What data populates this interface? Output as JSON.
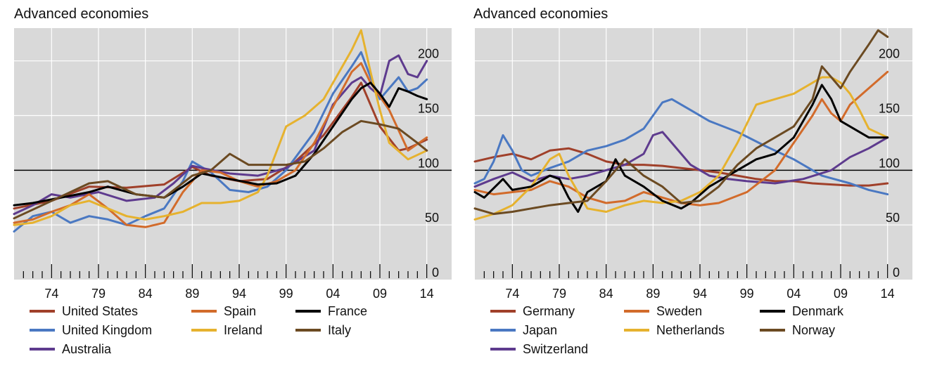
{
  "chart_data": [
    {
      "type": "line",
      "title": "Advanced economies",
      "xlabel": "",
      "ylabel": "",
      "x_ticks": [
        "74",
        "79",
        "84",
        "89",
        "94",
        "99",
        "04",
        "09",
        "14"
      ],
      "y_ticks": [
        "0",
        "50",
        "100",
        "150",
        "200"
      ],
      "xlim": [
        1970,
        2015
      ],
      "ylim": [
        0,
        230
      ],
      "reference_line": 100,
      "grid": true,
      "legend_position": "bottom",
      "series": [
        {
          "name": "United States",
          "color": "#a0402a",
          "x": [
            1970,
            1974,
            1978,
            1982,
            1986,
            1989,
            1991,
            1994,
            1997,
            2000,
            2003,
            2006,
            2007,
            2009,
            2011,
            2012,
            2014
          ],
          "y": [
            65,
            72,
            85,
            84,
            87,
            103,
            95,
            90,
            92,
            108,
            132,
            167,
            180,
            140,
            118,
            120,
            128
          ]
        },
        {
          "name": "United Kingdom",
          "color": "#4a78c2",
          "x": [
            1970,
            1972,
            1974,
            1976,
            1978,
            1980,
            1982,
            1984,
            1986,
            1988,
            1989,
            1991,
            1993,
            1995,
            1997,
            1999,
            2002,
            2004,
            2006,
            2007,
            2008,
            2009,
            2011,
            2012,
            2013,
            2014
          ],
          "y": [
            44,
            58,
            62,
            52,
            58,
            55,
            50,
            58,
            65,
            90,
            108,
            98,
            82,
            80,
            85,
            100,
            135,
            170,
            195,
            208,
            185,
            165,
            185,
            172,
            175,
            183
          ]
        },
        {
          "name": "Australia",
          "color": "#5e3b8e",
          "x": [
            1970,
            1972,
            1974,
            1976,
            1979,
            1982,
            1985,
            1987,
            1989,
            1990,
            1993,
            1996,
            1999,
            2002,
            2004,
            2006,
            2007,
            2008,
            2009,
            2010,
            2011,
            2012,
            2013,
            2014
          ],
          "y": [
            60,
            68,
            78,
            75,
            80,
            72,
            75,
            88,
            104,
            102,
            97,
            95,
            102,
            118,
            160,
            180,
            185,
            175,
            168,
            200,
            205,
            188,
            185,
            200
          ]
        },
        {
          "name": "Spain",
          "color": "#d26b2b",
          "x": [
            1970,
            1972,
            1974,
            1976,
            1978,
            1980,
            1982,
            1984,
            1986,
            1988,
            1990,
            1992,
            1994,
            1996,
            1998,
            2000,
            2002,
            2004,
            2006,
            2007,
            2008,
            2010,
            2012,
            2014
          ],
          "y": [
            52,
            55,
            62,
            68,
            78,
            65,
            50,
            48,
            52,
            80,
            100,
            98,
            90,
            85,
            90,
            100,
            125,
            158,
            190,
            198,
            180,
            155,
            118,
            130
          ]
        },
        {
          "name": "Ireland",
          "color": "#e6b22e",
          "x": [
            1970,
            1972,
            1974,
            1976,
            1978,
            1980,
            1982,
            1984,
            1986,
            1988,
            1990,
            1992,
            1994,
            1996,
            1997,
            1999,
            2001,
            2003,
            2005,
            2006,
            2007,
            2008,
            2009,
            2010,
            2012,
            2014
          ],
          "y": [
            50,
            52,
            58,
            68,
            72,
            65,
            58,
            55,
            58,
            62,
            70,
            70,
            72,
            80,
            95,
            140,
            150,
            165,
            195,
            210,
            228,
            190,
            155,
            125,
            110,
            118
          ]
        },
        {
          "name": "France",
          "color": "#000000",
          "x": [
            1970,
            1972,
            1975,
            1978,
            1980,
            1983,
            1986,
            1988,
            1990,
            1993,
            1996,
            1998,
            2000,
            2002,
            2004,
            2006,
            2007,
            2008,
            2009,
            2010,
            2011,
            2012,
            2013,
            2014
          ],
          "y": [
            68,
            70,
            75,
            80,
            85,
            78,
            75,
            85,
            97,
            92,
            87,
            88,
            95,
            115,
            140,
            165,
            175,
            180,
            170,
            158,
            175,
            172,
            168,
            165
          ]
        },
        {
          "name": "Italy",
          "color": "#6b4a22",
          "x": [
            1970,
            1973,
            1976,
            1978,
            1980,
            1983,
            1986,
            1989,
            1991,
            1993,
            1995,
            1997,
            1999,
            2001,
            2003,
            2005,
            2007,
            2009,
            2011,
            2013,
            2014
          ],
          "y": [
            56,
            68,
            80,
            88,
            90,
            78,
            75,
            95,
            100,
            115,
            105,
            105,
            105,
            108,
            120,
            135,
            145,
            142,
            138,
            125,
            118
          ]
        }
      ]
    },
    {
      "type": "line",
      "title": "Advanced economies",
      "xlabel": "",
      "ylabel": "",
      "x_ticks": [
        "74",
        "79",
        "84",
        "89",
        "94",
        "99",
        "04",
        "09",
        "14"
      ],
      "y_ticks": [
        "0",
        "50",
        "100",
        "150",
        "200"
      ],
      "xlim": [
        1970,
        2015
      ],
      "ylim": [
        0,
        230
      ],
      "reference_line": 100,
      "grid": true,
      "legend_position": "bottom",
      "series": [
        {
          "name": "Germany",
          "color": "#a0402a",
          "x": [
            1970,
            1972,
            1974,
            1976,
            1978,
            1980,
            1982,
            1984,
            1986,
            1988,
            1990,
            1992,
            1994,
            1996,
            1998,
            2000,
            2002,
            2004,
            2006,
            2008,
            2010,
            2012,
            2014
          ],
          "y": [
            108,
            112,
            115,
            110,
            118,
            120,
            115,
            108,
            105,
            105,
            104,
            102,
            100,
            98,
            95,
            92,
            90,
            90,
            88,
            87,
            86,
            86,
            88
          ]
        },
        {
          "name": "Japan",
          "color": "#4a78c2",
          "x": [
            1970,
            1971,
            1972,
            1973,
            1974,
            1975,
            1976,
            1978,
            1980,
            1982,
            1984,
            1986,
            1988,
            1989,
            1990,
            1991,
            1993,
            1995,
            1998,
            2001,
            2004,
            2007,
            2010,
            2012,
            2014
          ],
          "y": [
            88,
            92,
            108,
            132,
            118,
            100,
            95,
            102,
            108,
            118,
            122,
            128,
            138,
            150,
            162,
            165,
            155,
            145,
            135,
            122,
            110,
            95,
            88,
            82,
            78
          ]
        },
        {
          "name": "Switzerland",
          "color": "#5e3b8e",
          "x": [
            1970,
            1972,
            1974,
            1976,
            1978,
            1980,
            1982,
            1984,
            1986,
            1988,
            1989,
            1990,
            1991,
            1993,
            1995,
            1997,
            1999,
            2002,
            2005,
            2008,
            2010,
            2012,
            2014
          ],
          "y": [
            85,
            92,
            98,
            90,
            95,
            92,
            95,
            100,
            105,
            115,
            132,
            135,
            125,
            105,
            95,
            92,
            90,
            88,
            92,
            100,
            112,
            120,
            130
          ]
        },
        {
          "name": "Sweden",
          "color": "#d26b2b",
          "x": [
            1970,
            1972,
            1974,
            1976,
            1978,
            1980,
            1982,
            1984,
            1986,
            1988,
            1990,
            1992,
            1994,
            1996,
            1999,
            2002,
            2004,
            2006,
            2007,
            2008,
            2009,
            2010,
            2012,
            2014
          ],
          "y": [
            82,
            78,
            80,
            82,
            90,
            85,
            75,
            70,
            72,
            80,
            75,
            70,
            68,
            70,
            80,
            100,
            125,
            150,
            165,
            152,
            145,
            160,
            175,
            190
          ]
        },
        {
          "name": "Netherlands",
          "color": "#e6b22e",
          "x": [
            1970,
            1972,
            1974,
            1976,
            1978,
            1979,
            1980,
            1982,
            1984,
            1986,
            1988,
            1990,
            1992,
            1994,
            1996,
            1998,
            2000,
            2002,
            2004,
            2006,
            2007,
            2008,
            2009,
            2010,
            2011,
            2012,
            2014
          ],
          "y": [
            55,
            60,
            68,
            85,
            110,
            115,
            95,
            65,
            62,
            68,
            72,
            70,
            72,
            80,
            95,
            125,
            160,
            165,
            170,
            180,
            185,
            185,
            180,
            170,
            155,
            138,
            130
          ]
        },
        {
          "name": "Denmark",
          "color": "#000000",
          "x": [
            1970,
            1971,
            1973,
            1974,
            1976,
            1978,
            1979,
            1980,
            1981,
            1982,
            1984,
            1985,
            1986,
            1988,
            1990,
            1992,
            1993,
            1995,
            1998,
            2000,
            2002,
            2004,
            2006,
            2007,
            2008,
            2009,
            2010,
            2012,
            2014
          ],
          "y": [
            80,
            75,
            92,
            82,
            85,
            95,
            92,
            75,
            62,
            80,
            90,
            110,
            95,
            85,
            72,
            65,
            70,
            85,
            100,
            110,
            115,
            130,
            160,
            178,
            165,
            145,
            140,
            130,
            130
          ]
        },
        {
          "name": "Norway",
          "color": "#6b4a22",
          "x": [
            1970,
            1972,
            1974,
            1976,
            1978,
            1980,
            1982,
            1984,
            1986,
            1988,
            1990,
            1992,
            1994,
            1996,
            1998,
            2000,
            2002,
            2004,
            2006,
            2007,
            2008,
            2009,
            2010,
            2012,
            2013,
            2014
          ],
          "y": [
            65,
            60,
            62,
            65,
            68,
            70,
            72,
            90,
            110,
            95,
            85,
            70,
            72,
            85,
            105,
            120,
            130,
            140,
            165,
            195,
            185,
            175,
            190,
            215,
            228,
            222
          ]
        }
      ]
    }
  ]
}
